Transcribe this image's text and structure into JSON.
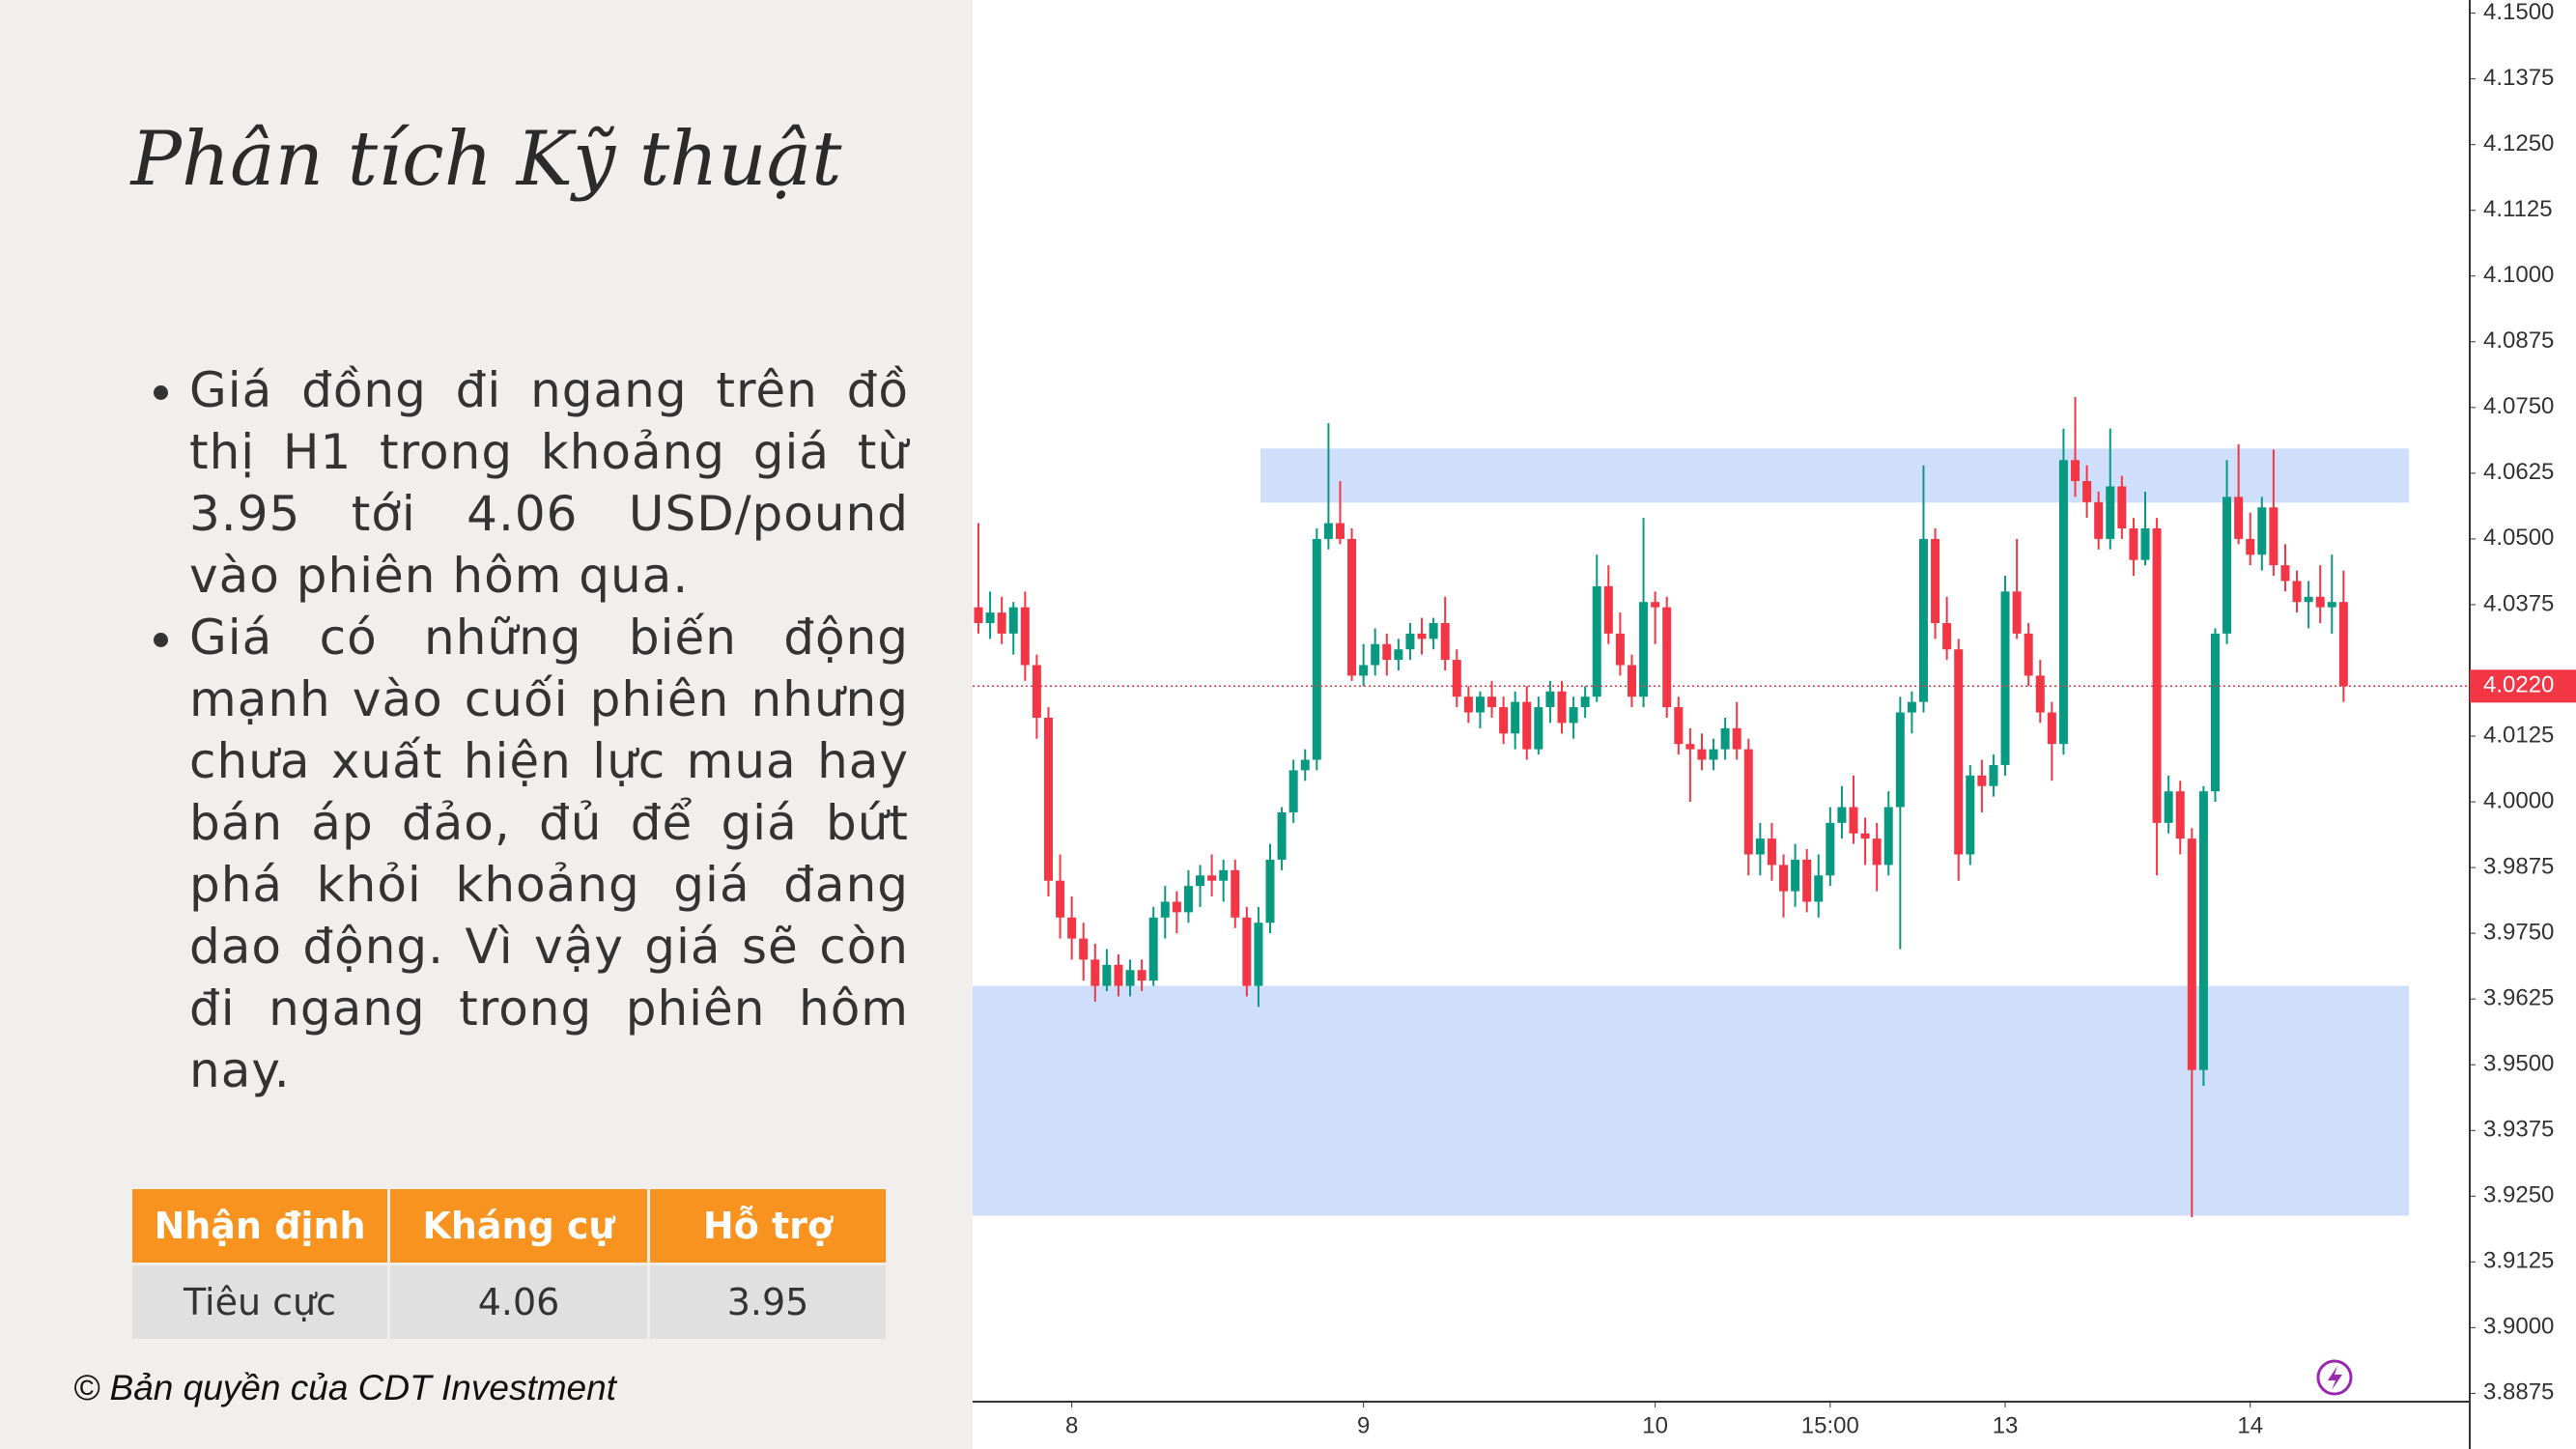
{
  "header": {
    "title": "Phân tích Kỹ thuật"
  },
  "bullets": [
    "Giá đồng đi ngang trên đồ thị H1 trong khoảng giá từ 3.95 tới 4.06 USD/pound vào phiên hôm qua.",
    "Giá có những biến động mạnh vào cuối phiên nhưng chưa xuất hiện lực mua hay bán áp đảo, đủ để giá bứt phá khỏi khoảng giá đang dao động. Vì vậy giá sẽ còn đi ngang trong phiên hôm nay."
  ],
  "table": {
    "header": [
      "Nhận định",
      "Kháng cự",
      "Hỗ trợ"
    ],
    "rows": [
      [
        "Tiêu cực",
        "4.06",
        "3.95"
      ]
    ]
  },
  "footer": "© Bản quyền của CDT Investment",
  "chart_data": {
    "type": "candlestick",
    "up_color": "#089981",
    "down_color": "#f23645",
    "zone_color": "#cfdffb",
    "grid": false,
    "ylim": [
      3.8875,
      4.15
    ],
    "yticks": [
      {
        "value": 4.15,
        "label": "4.1500"
      },
      {
        "value": 4.1375,
        "label": "4.1375"
      },
      {
        "value": 4.125,
        "label": "4.1250"
      },
      {
        "value": 4.1125,
        "label": "4.1125"
      },
      {
        "value": 4.1,
        "label": "4.1000"
      },
      {
        "value": 4.0875,
        "label": "4.0875"
      },
      {
        "value": 4.075,
        "label": "4.0750"
      },
      {
        "value": 4.0625,
        "label": "4.0625"
      },
      {
        "value": 4.05,
        "label": "4.0500"
      },
      {
        "value": 4.0375,
        "label": "4.0375"
      },
      {
        "value": 4.0125,
        "label": "4.0125"
      },
      {
        "value": 4,
        "label": "4.0000"
      },
      {
        "value": 3.9875,
        "label": "3.9875"
      },
      {
        "value": 3.975,
        "label": "3.9750"
      },
      {
        "value": 3.9625,
        "label": "3.9625"
      },
      {
        "value": 3.95,
        "label": "3.9500"
      },
      {
        "value": 3.9375,
        "label": "3.9375"
      },
      {
        "value": 3.925,
        "label": "3.9250"
      },
      {
        "value": 3.9125,
        "label": "3.9125"
      },
      {
        "value": 3.9,
        "label": "3.9000"
      },
      {
        "value": 3.8875,
        "label": "3.8875"
      }
    ],
    "last_price": {
      "value": 4.022,
      "label": "4.0220"
    },
    "zones": [
      {
        "low": 4.0569,
        "high": 4.0672
      },
      {
        "low": 3.9213,
        "high": 3.965
      }
    ],
    "x": [
      null,
      null,
      null,
      null,
      null,
      null,
      null,
      null,
      "8",
      null,
      null,
      null,
      null,
      null,
      null,
      null,
      null,
      null,
      null,
      null,
      null,
      null,
      null,
      null,
      null,
      null,
      null,
      null,
      null,
      null,
      null,
      null,
      null,
      "9",
      null,
      null,
      null,
      null,
      null,
      null,
      null,
      null,
      null,
      null,
      null,
      null,
      null,
      null,
      null,
      null,
      null,
      null,
      null,
      null,
      null,
      null,
      null,
      null,
      "10",
      null,
      null,
      null,
      null,
      null,
      null,
      null,
      null,
      null,
      null,
      null,
      null,
      null,
      null,
      "15:00",
      null,
      null,
      null,
      null,
      null,
      null,
      null,
      null,
      null,
      null,
      null,
      null,
      null,
      null,
      "13",
      null,
      null,
      null,
      null,
      null,
      null,
      null,
      null,
      null,
      null,
      null,
      null,
      null,
      null,
      null,
      null,
      null,
      null,
      null,
      null,
      "14",
      null,
      null,
      null,
      null,
      null,
      null,
      null,
      null
    ],
    "candles": [
      [
        4.037,
        4.053,
        4.032,
        4.034
      ],
      [
        4.034,
        4.04,
        4.031,
        4.036
      ],
      [
        4.036,
        4.039,
        4.03,
        4.032
      ],
      [
        4.032,
        4.038,
        4.028,
        4.037
      ],
      [
        4.037,
        4.04,
        4.023,
        4.026
      ],
      [
        4.026,
        4.028,
        4.012,
        4.016
      ],
      [
        4.016,
        4.018,
        3.982,
        3.985
      ],
      [
        3.985,
        3.99,
        3.974,
        3.978
      ],
      [
        3.978,
        3.982,
        3.97,
        3.974
      ],
      [
        3.974,
        3.977,
        3.966,
        3.97
      ],
      [
        3.97,
        3.973,
        3.962,
        3.965
      ],
      [
        3.965,
        3.972,
        3.964,
        3.969
      ],
      [
        3.969,
        3.971,
        3.963,
        3.965
      ],
      [
        3.965,
        3.97,
        3.963,
        3.968
      ],
      [
        3.968,
        3.97,
        3.964,
        3.966
      ],
      [
        3.966,
        3.98,
        3.965,
        3.978
      ],
      [
        3.978,
        3.984,
        3.974,
        3.981
      ],
      [
        3.981,
        3.983,
        3.975,
        3.979
      ],
      [
        3.979,
        3.987,
        3.977,
        3.984
      ],
      [
        3.984,
        3.988,
        3.98,
        3.986
      ],
      [
        3.986,
        3.99,
        3.982,
        3.985
      ],
      [
        3.985,
        3.989,
        3.981,
        3.987
      ],
      [
        3.987,
        3.989,
        3.976,
        3.978
      ],
      [
        3.978,
        3.98,
        3.963,
        3.965
      ],
      [
        3.965,
        3.98,
        3.961,
        3.977
      ],
      [
        3.977,
        3.992,
        3.975,
        3.989
      ],
      [
        3.989,
        3.999,
        3.987,
        3.998
      ],
      [
        3.998,
        4.008,
        3.996,
        4.006
      ],
      [
        4.006,
        4.01,
        4.004,
        4.008
      ],
      [
        4.008,
        4.052,
        4.006,
        4.05
      ],
      [
        4.05,
        4.072,
        4.048,
        4.053
      ],
      [
        4.053,
        4.061,
        4.049,
        4.05
      ],
      [
        4.05,
        4.052,
        4.023,
        4.024
      ],
      [
        4.024,
        4.03,
        4.022,
        4.026
      ],
      [
        4.026,
        4.033,
        4.024,
        4.03
      ],
      [
        4.03,
        4.032,
        4.024,
        4.027
      ],
      [
        4.027,
        4.031,
        4.025,
        4.029
      ],
      [
        4.029,
        4.034,
        4.027,
        4.032
      ],
      [
        4.032,
        4.035,
        4.028,
        4.031
      ],
      [
        4.031,
        4.035,
        4.029,
        4.034
      ],
      [
        4.034,
        4.039,
        4.025,
        4.027
      ],
      [
        4.027,
        4.029,
        4.018,
        4.02
      ],
      [
        4.02,
        4.022,
        4.015,
        4.017
      ],
      [
        4.017,
        4.021,
        4.014,
        4.02
      ],
      [
        4.02,
        4.023,
        4.016,
        4.018
      ],
      [
        4.018,
        4.02,
        4.011,
        4.013
      ],
      [
        4.013,
        4.021,
        4.01,
        4.019
      ],
      [
        4.019,
        4.022,
        4.008,
        4.01
      ],
      [
        4.01,
        4.02,
        4.009,
        4.018
      ],
      [
        4.018,
        4.023,
        4.015,
        4.021
      ],
      [
        4.021,
        4.023,
        4.013,
        4.015
      ],
      [
        4.015,
        4.02,
        4.012,
        4.018
      ],
      [
        4.018,
        4.022,
        4.016,
        4.02
      ],
      [
        4.02,
        4.047,
        4.019,
        4.041
      ],
      [
        4.041,
        4.045,
        4.03,
        4.032
      ],
      [
        4.032,
        4.036,
        4.024,
        4.026
      ],
      [
        4.026,
        4.028,
        4.018,
        4.02
      ],
      [
        4.02,
        4.054,
        4.018,
        4.038
      ],
      [
        4.038,
        4.04,
        4.03,
        4.037
      ],
      [
        4.037,
        4.039,
        4.016,
        4.018
      ],
      [
        4.018,
        4.02,
        4.009,
        4.011
      ],
      [
        4.011,
        4.014,
        4.0,
        4.01
      ],
      [
        4.01,
        4.013,
        4.006,
        4.008
      ],
      [
        4.008,
        4.012,
        4.006,
        4.01
      ],
      [
        4.01,
        4.016,
        4.008,
        4.014
      ],
      [
        4.014,
        4.019,
        4.008,
        4.01
      ],
      [
        4.01,
        4.012,
        3.986,
        3.99
      ],
      [
        3.99,
        3.996,
        3.986,
        3.993
      ],
      [
        3.993,
        3.996,
        3.985,
        3.988
      ],
      [
        3.988,
        3.99,
        3.978,
        3.983
      ],
      [
        3.983,
        3.992,
        3.98,
        3.989
      ],
      [
        3.989,
        3.991,
        3.979,
        3.981
      ],
      [
        3.981,
        3.99,
        3.978,
        3.986
      ],
      [
        3.986,
        3.999,
        3.984,
        3.996
      ],
      [
        3.996,
        4.003,
        3.993,
        3.999
      ],
      [
        3.999,
        4.005,
        3.992,
        3.994
      ],
      [
        3.994,
        3.997,
        3.988,
        3.993
      ],
      [
        3.993,
        3.996,
        3.983,
        3.988
      ],
      [
        3.988,
        4.002,
        3.986,
        3.999
      ],
      [
        3.999,
        4.02,
        3.972,
        4.017
      ],
      [
        4.017,
        4.021,
        4.013,
        4.019
      ],
      [
        4.019,
        4.064,
        4.017,
        4.05
      ],
      [
        4.05,
        4.052,
        4.031,
        4.034
      ],
      [
        4.034,
        4.039,
        4.027,
        4.029
      ],
      [
        4.029,
        4.031,
        3.985,
        3.99
      ],
      [
        3.99,
        4.007,
        3.988,
        4.005
      ],
      [
        4.005,
        4.008,
        3.998,
        4.003
      ],
      [
        4.003,
        4.009,
        4.001,
        4.007
      ],
      [
        4.007,
        4.043,
        4.005,
        4.04
      ],
      [
        4.04,
        4.05,
        4.031,
        4.032
      ],
      [
        4.032,
        4.034,
        4.022,
        4.024
      ],
      [
        4.024,
        4.027,
        4.015,
        4.017
      ],
      [
        4.017,
        4.019,
        4.004,
        4.011
      ],
      [
        4.011,
        4.071,
        4.009,
        4.065
      ],
      [
        4.065,
        4.077,
        4.058,
        4.061
      ],
      [
        4.061,
        4.064,
        4.054,
        4.057
      ],
      [
        4.057,
        4.059,
        4.048,
        4.05
      ],
      [
        4.05,
        4.071,
        4.048,
        4.06
      ],
      [
        4.06,
        4.062,
        4.05,
        4.052
      ],
      [
        4.052,
        4.054,
        4.043,
        4.046
      ],
      [
        4.046,
        4.059,
        4.045,
        4.052
      ],
      [
        4.052,
        4.054,
        3.986,
        3.996
      ],
      [
        3.996,
        4.005,
        3.994,
        4.002
      ],
      [
        4.002,
        4.004,
        3.99,
        3.993
      ],
      [
        3.993,
        3.995,
        3.921,
        3.949
      ],
      [
        3.949,
        4.003,
        3.946,
        4.002
      ],
      [
        4.002,
        4.033,
        4.0,
        4.032
      ],
      [
        4.032,
        4.065,
        4.03,
        4.058
      ],
      [
        4.058,
        4.068,
        4.049,
        4.05
      ],
      [
        4.05,
        4.055,
        4.045,
        4.047
      ],
      [
        4.047,
        4.058,
        4.044,
        4.056
      ],
      [
        4.056,
        4.067,
        4.043,
        4.045
      ],
      [
        4.045,
        4.049,
        4.04,
        4.042
      ],
      [
        4.042,
        4.044,
        4.036,
        4.038
      ],
      [
        4.038,
        4.042,
        4.033,
        4.039
      ],
      [
        4.039,
        4.045,
        4.034,
        4.037
      ],
      [
        4.037,
        4.047,
        4.032,
        4.038
      ],
      [
        4.038,
        4.044,
        4.019,
        4.022
      ]
    ]
  }
}
